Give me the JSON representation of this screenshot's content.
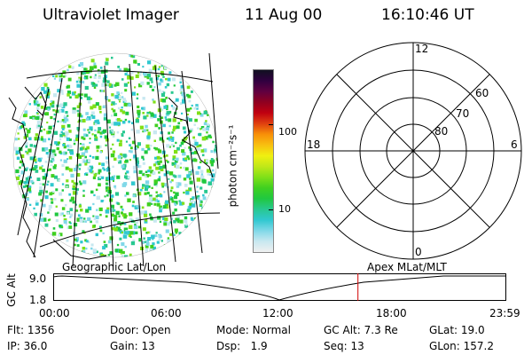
{
  "header": {
    "instrument": "Ultraviolet Imager",
    "date": "11 Aug 00",
    "time": "16:10:46 UT"
  },
  "colorbar": {
    "unit_label": "photon cm⁻²s⁻¹",
    "ticks": [
      "100",
      "10"
    ],
    "colors": [
      "#f0f0f0",
      "#c8e8f0",
      "#80d8e8",
      "#30c8d0",
      "#28c890",
      "#20c840",
      "#40d020",
      "#80e018",
      "#c0e818",
      "#f0f010",
      "#f8c010",
      "#f89008",
      "#e04010",
      "#c00010",
      "#900020",
      "#600040",
      "#300040",
      "#101020"
    ]
  },
  "polar_plot": {
    "mlt_labels": [
      "12",
      "18",
      "6",
      "0"
    ],
    "mlat_labels": [
      "60",
      "70",
      "80"
    ]
  },
  "timeline": {
    "left_label": "Geographic Lat/Lon",
    "right_label": "Apex MLat/MLT",
    "axis_title": "GC Alt",
    "y_ticks": [
      "9.0",
      "1.8"
    ],
    "x_ticks": [
      "00:00",
      "06:00",
      "12:00",
      "18:00",
      "23:59"
    ],
    "current_time_fraction": 0.674
  },
  "status": {
    "row1": [
      {
        "label": "Flt:",
        "value": "1356"
      },
      {
        "label": "Door:",
        "value": "Open"
      },
      {
        "label": "Mode:",
        "value": "Normal"
      },
      {
        "label": "GC Alt:",
        "value": "7.3 Re"
      },
      {
        "label": "GLat:",
        "value": "19.0"
      }
    ],
    "row2": [
      {
        "label": "IP:",
        "value": "36.0"
      },
      {
        "label": "Gain:",
        "value": "13"
      },
      {
        "label": "Dsp:",
        "value": "1.9"
      },
      {
        "label": "Seq:",
        "value": "13"
      },
      {
        "label": "GLon:",
        "value": "157.2"
      }
    ]
  }
}
